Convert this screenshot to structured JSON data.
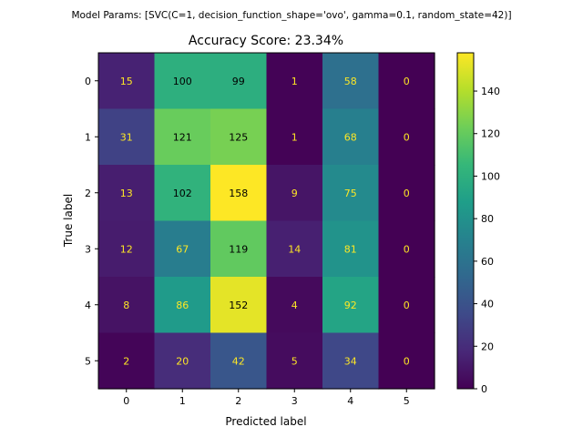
{
  "chart_data": {
    "type": "heatmap",
    "suptitle": "Model Params: [SVC(C=1, decision_function_shape='ovo', gamma=0.1, random_state=42)]",
    "title": "Accuracy Score: 23.34%",
    "xlabel": "Predicted label",
    "ylabel": "True label",
    "x_categories": [
      "0",
      "1",
      "2",
      "3",
      "4",
      "5"
    ],
    "y_categories": [
      "0",
      "1",
      "2",
      "3",
      "4",
      "5"
    ],
    "matrix": [
      [
        15,
        100,
        99,
        1,
        58,
        0
      ],
      [
        31,
        121,
        125,
        1,
        68,
        0
      ],
      [
        13,
        102,
        158,
        9,
        75,
        0
      ],
      [
        12,
        67,
        119,
        14,
        81,
        0
      ],
      [
        8,
        86,
        152,
        4,
        92,
        0
      ],
      [
        2,
        20,
        42,
        5,
        34,
        0
      ]
    ],
    "colormap": "viridis",
    "vmin": 0,
    "vmax": 158,
    "colorbar_ticks": [
      0,
      20,
      40,
      60,
      80,
      100,
      120,
      140
    ],
    "grid": false
  }
}
